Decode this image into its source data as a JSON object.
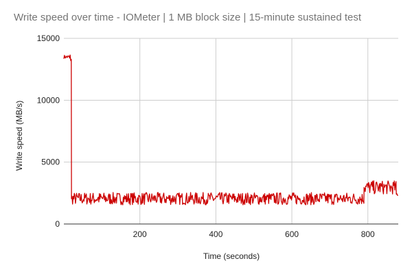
{
  "chart_data": {
    "type": "line",
    "title": "Write speed over time - IOMeter | 1 MB block size | 15-minute sustained test",
    "xlabel": "Time (seconds)",
    "ylabel": "Write speed (MB/s)",
    "xlim": [
      0,
      880
    ],
    "ylim": [
      0,
      15000
    ],
    "x_ticks": [
      200,
      400,
      600,
      800
    ],
    "y_ticks": [
      0,
      5000,
      10000,
      15000
    ],
    "grid": true,
    "legend": "none",
    "colors": {
      "series": "#cc0000",
      "grid": "#cccccc",
      "title": "#757575",
      "text": "#222222"
    },
    "series": [
      {
        "segments": [
          {
            "x_start": 0,
            "x_end": 15,
            "value": 13500,
            "fluctuation": 150
          },
          {
            "x_start": 15,
            "x_end": 20,
            "value": 13400,
            "fluctuation": 400
          },
          {
            "x_start": 20,
            "x_end": 790,
            "value": 2050,
            "fluctuation": 500
          },
          {
            "x_start": 790,
            "x_end": 875,
            "value": 2950,
            "fluctuation": 550
          },
          {
            "x_start": 875,
            "x_end": 880,
            "value": 2400,
            "fluctuation": 150
          }
        ]
      }
    ]
  }
}
